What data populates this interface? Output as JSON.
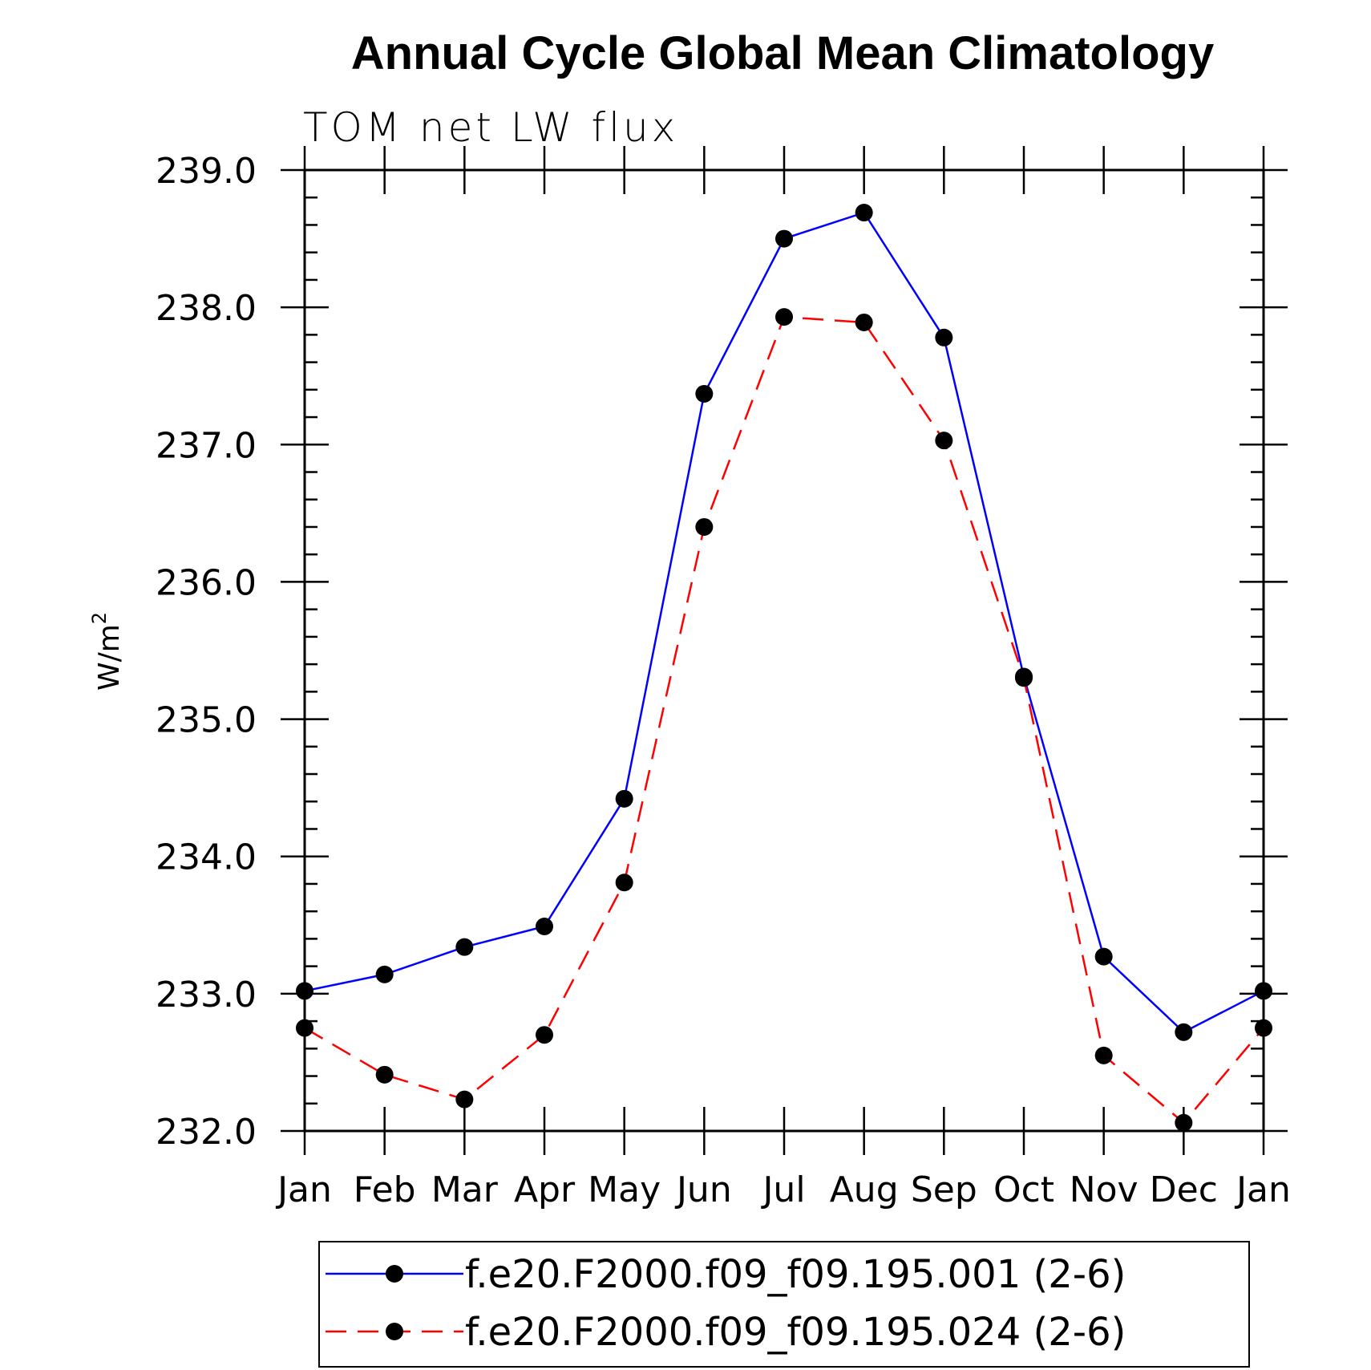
{
  "chart_data": {
    "type": "line",
    "title": "Annual Cycle Global Mean Climatology",
    "subtitle": "TOM net LW flux",
    "ylabel": "W/m",
    "ylabel_sup": "2",
    "xlabel": "",
    "categories": [
      "Jan",
      "Feb",
      "Mar",
      "Apr",
      "May",
      "Jun",
      "Jul",
      "Aug",
      "Sep",
      "Oct",
      "Nov",
      "Dec",
      "Jan"
    ],
    "ylim": [
      232.0,
      239.0
    ],
    "yticks": [
      232.0,
      233.0,
      234.0,
      235.0,
      236.0,
      237.0,
      238.0,
      239.0
    ],
    "ytick_labels": [
      "232.0",
      "233.0",
      "234.0",
      "235.0",
      "236.0",
      "237.0",
      "238.0",
      "239.0"
    ],
    "grid": false,
    "legend_position": "bottom",
    "series": [
      {
        "name": "f.e20.F2000.f09_f09.195.001 (2-6)",
        "color": "#0000ff",
        "style": "solid",
        "marker": "filled-circle",
        "values": [
          233.02,
          233.14,
          233.34,
          233.49,
          234.42,
          237.37,
          238.5,
          238.69,
          237.78,
          235.31,
          233.27,
          232.72,
          233.02
        ]
      },
      {
        "name": "f.e20.F2000.f09_f09.195.024 (2-6)",
        "color": "#ff0000",
        "style": "dashed",
        "marker": "filled-circle",
        "values": [
          232.75,
          232.41,
          232.23,
          232.7,
          233.81,
          236.4,
          237.93,
          237.89,
          237.03,
          235.3,
          232.55,
          232.06,
          232.75
        ]
      }
    ]
  }
}
